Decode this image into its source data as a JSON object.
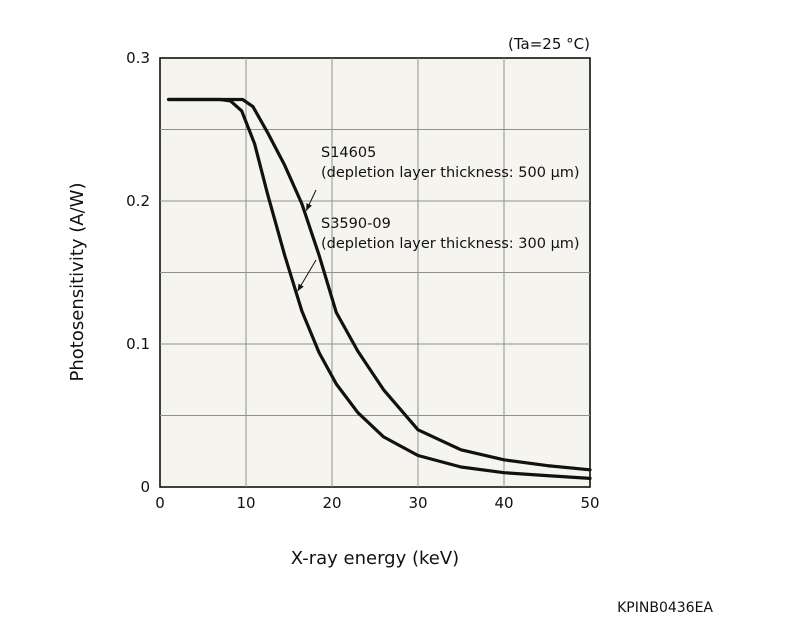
{
  "chart_data": {
    "type": "line",
    "xlabel": "X-ray energy (keV)",
    "ylabel": "Photosensitivity (A/W)",
    "xlim": [
      0,
      50
    ],
    "ylim": [
      0,
      0.3
    ],
    "xticks": [
      0,
      10,
      20,
      30,
      40,
      50
    ],
    "yticks": [
      0,
      0.1,
      0.2,
      0.3
    ],
    "ytick_labels": [
      "0",
      "0.1",
      "0.2",
      "0.3"
    ],
    "grid": true,
    "condition": "(Ta=25 °C)",
    "figure_code": "KPINB0436EA",
    "background_color": "#f6f4ee",
    "line_color": "#111111",
    "series": [
      {
        "name": "S14605",
        "annotation": [
          "S14605",
          "(depletion layer thickness: 500 µm)"
        ],
        "x": [
          1,
          7,
          9.6,
          10.8,
          12.5,
          14.5,
          16.5,
          18.5,
          20.5,
          23,
          26,
          30,
          35,
          40,
          45,
          50
        ],
        "y": [
          0.271,
          0.271,
          0.271,
          0.266,
          0.248,
          0.225,
          0.198,
          0.162,
          0.122,
          0.095,
          0.068,
          0.04,
          0.026,
          0.019,
          0.015,
          0.012
        ]
      },
      {
        "name": "S3590-09",
        "annotation": [
          "S3590-09",
          "(depletion layer thickness: 300 µm)"
        ],
        "x": [
          1,
          7,
          8.2,
          9.5,
          11,
          12.5,
          14.5,
          16.5,
          18.5,
          20.5,
          23,
          26,
          30,
          35,
          40,
          45,
          50
        ],
        "y": [
          0.271,
          0.271,
          0.27,
          0.263,
          0.24,
          0.205,
          0.162,
          0.123,
          0.094,
          0.072,
          0.052,
          0.035,
          0.022,
          0.014,
          0.01,
          0.008,
          0.006
        ]
      }
    ]
  }
}
